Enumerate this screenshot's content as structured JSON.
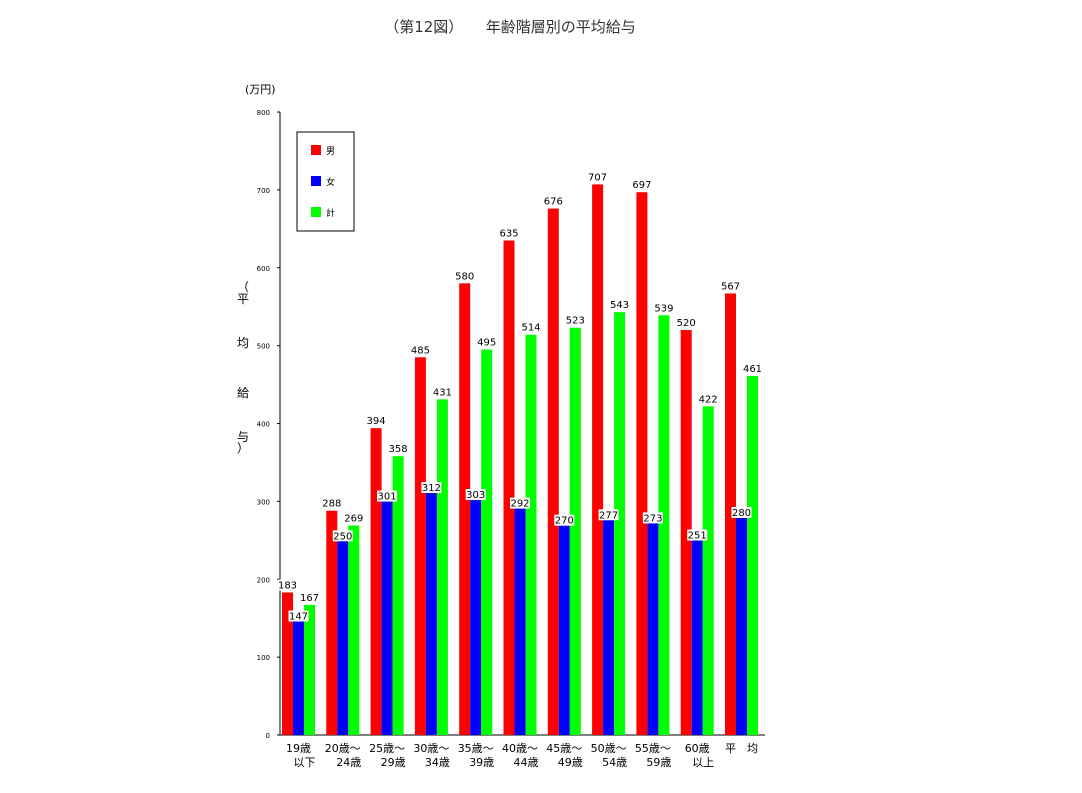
{
  "chart_data": {
    "type": "bar",
    "title": "（第12図）　　年齢階層別の平均給与",
    "unit_label": "(万円)",
    "ylabel": "（平均給与）",
    "ylim": [
      0,
      800
    ],
    "yticks": [
      0,
      100,
      200,
      300,
      400,
      500,
      600,
      700,
      800
    ],
    "categories": [
      [
        "19歳",
        "以下"
      ],
      [
        "20歳～",
        "24歳"
      ],
      [
        "25歳～",
        "29歳"
      ],
      [
        "30歳～",
        "34歳"
      ],
      [
        "35歳～",
        "39歳"
      ],
      [
        "40歳～",
        "44歳"
      ],
      [
        "45歳～",
        "49歳"
      ],
      [
        "50歳～",
        "54歳"
      ],
      [
        "55歳～",
        "59歳"
      ],
      [
        "60歳",
        "以上"
      ],
      [
        "平　均",
        ""
      ]
    ],
    "series": [
      {
        "name": "男",
        "color": "#ff0000",
        "values": [
          183,
          288,
          394,
          485,
          580,
          635,
          676,
          707,
          697,
          520,
          567
        ]
      },
      {
        "name": "女",
        "color": "#0000ff",
        "values": [
          147,
          250,
          301,
          312,
          303,
          292,
          270,
          277,
          273,
          251,
          280
        ]
      },
      {
        "name": "計",
        "color": "#00ff00",
        "values": [
          167,
          269,
          358,
          431,
          495,
          514,
          523,
          543,
          539,
          422,
          461
        ]
      }
    ],
    "legend_position": "top-left",
    "grid": false
  }
}
